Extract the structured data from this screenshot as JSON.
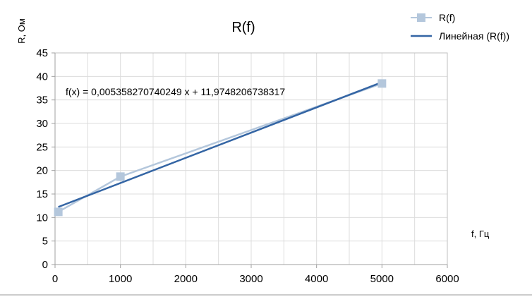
{
  "chart_data": {
    "type": "scatter",
    "title": "R(f)",
    "xlabel": "f, Гц",
    "ylabel": "R, Ом",
    "xlim": [
      0,
      6000
    ],
    "ylim": [
      0,
      45
    ],
    "x_ticks": [
      0,
      1000,
      2000,
      3000,
      4000,
      5000,
      6000
    ],
    "y_ticks": [
      0,
      5,
      10,
      15,
      20,
      25,
      30,
      35,
      40,
      45
    ],
    "grid": true,
    "legend_position": "top-right",
    "series": [
      {
        "name": "R(f)",
        "color": "#b4c7dc",
        "marker": "square",
        "x": [
          50,
          1000,
          5000
        ],
        "y": [
          11.2,
          18.7,
          38.5
        ]
      }
    ],
    "trendline": {
      "name": "Линейная (R(f))",
      "color": "#3465a4",
      "slope": 0.005358270740249,
      "intercept": 11.9748206738317,
      "x_range": [
        50,
        5000
      ],
      "equation": "f(x) = 0,005358270740249 x + 11,9748206738317"
    }
  }
}
